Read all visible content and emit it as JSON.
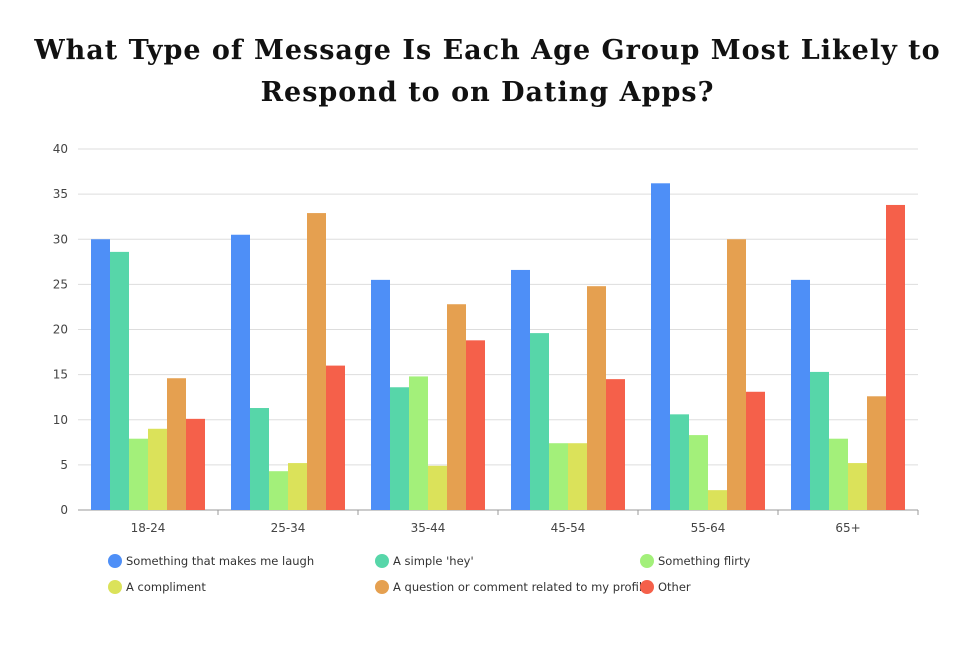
{
  "chart_data": {
    "type": "bar",
    "title": "What Type of Message Is Each Age Group Most Likely to Respond to on Dating Apps?",
    "xlabel": "",
    "ylabel": "",
    "ylim": [
      0,
      40
    ],
    "yticks": [
      0,
      5,
      10,
      15,
      20,
      25,
      30,
      35,
      40
    ],
    "grid": true,
    "legend": "bottom",
    "categories": [
      "18-24",
      "25-34",
      "35-44",
      "45-54",
      "55-64",
      "65+"
    ],
    "series": [
      {
        "name": "Something that makes me laugh",
        "color": "#4e8ff7",
        "values": [
          30,
          30.5,
          25.5,
          26.6,
          36.2,
          25.5
        ]
      },
      {
        "name": "A simple 'hey'",
        "color": "#57d6a9",
        "values": [
          28.6,
          11.3,
          13.6,
          19.6,
          10.6,
          15.3
        ]
      },
      {
        "name": "Something flirty",
        "color": "#a3f07a",
        "values": [
          7.9,
          4.3,
          14.8,
          7.4,
          8.3,
          7.9
        ]
      },
      {
        "name": "A compliment",
        "color": "#dbe25a",
        "values": [
          9.0,
          5.2,
          4.9,
          7.4,
          2.2,
          5.2
        ]
      },
      {
        "name": "A question or comment related to my profile",
        "color": "#e5a050",
        "values": [
          14.6,
          32.9,
          22.8,
          24.8,
          30.0,
          12.6
        ]
      },
      {
        "name": "Other",
        "color": "#f5604a",
        "values": [
          10.1,
          16.0,
          18.8,
          14.5,
          13.1,
          33.8
        ]
      }
    ]
  }
}
